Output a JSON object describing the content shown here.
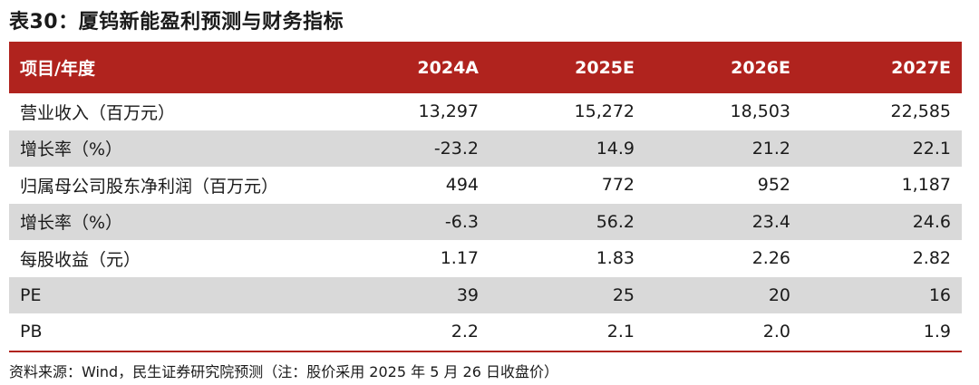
{
  "title": "表30：厦钨新能盈利预测与财务指标",
  "header": [
    "项目/年度",
    "2024A",
    "2025E",
    "2026E",
    "2027E"
  ],
  "rows": [
    [
      "营业收入（百万元）",
      "13,297",
      "15,272",
      "18,503",
      "22,585"
    ],
    [
      "增长率（%）",
      "-23.2",
      "14.9",
      "21.2",
      "22.1"
    ],
    [
      "归属母公司股东净利润（百万元）",
      "494",
      "772",
      "952",
      "1,187"
    ],
    [
      "增长率（%）",
      "-6.3",
      "56.2",
      "23.4",
      "24.6"
    ],
    [
      "每股收益（元）",
      "1.17",
      "1.83",
      "2.26",
      "2.82"
    ],
    [
      "PE",
      "39",
      "25",
      "20",
      "16"
    ],
    [
      "PB",
      "2.2",
      "2.1",
      "2.0",
      "1.9"
    ]
  ],
  "source": "资料来源：Wind，民生证券研究院预测（注：股价采用 2025 年 5 月 26 日收盘价）",
  "colors": {
    "header_bg": "#b0231e",
    "shade_row": "#d9d9d9",
    "rule": "#b0231e"
  }
}
